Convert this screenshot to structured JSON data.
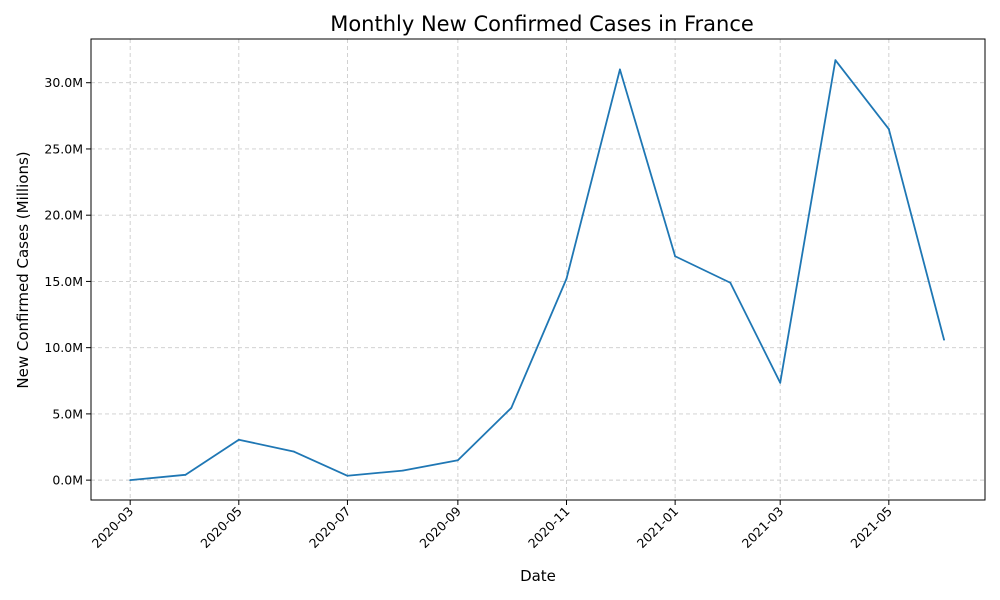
{
  "chart_data": {
    "type": "line",
    "title": "Monthly New Confirmed Cases in France",
    "xlabel": "Date",
    "ylabel": "New Confirmed Cases (Millions)",
    "x": [
      "2020-03-01",
      "2020-04-01",
      "2020-05-01",
      "2020-06-01",
      "2020-07-01",
      "2020-08-01",
      "2020-09-01",
      "2020-10-01",
      "2020-11-01",
      "2020-12-01",
      "2021-01-01",
      "2021-02-01",
      "2021-03-01",
      "2021-04-01",
      "2021-05-01",
      "2021-06-01"
    ],
    "series": [
      {
        "values": [
          0.0,
          0.4,
          3.05,
          2.15,
          0.33,
          0.72,
          1.5,
          5.45,
          15.2,
          31.0,
          16.9,
          14.9,
          7.35,
          31.7,
          26.5,
          10.6
        ],
        "color": "#1f77b4"
      }
    ],
    "ylim": [
      -1.5,
      33.3
    ],
    "xlim": [
      "2020-02-08",
      "2021-06-24"
    ],
    "yticks": [
      0,
      5,
      10,
      15,
      20,
      25,
      30
    ],
    "ytick_labels": [
      "0.0M",
      "5.0M",
      "10.0M",
      "15.0M",
      "20.0M",
      "25.0M",
      "30.0M"
    ],
    "xticks": [
      "2020-03-01",
      "2020-05-01",
      "2020-07-01",
      "2020-09-01",
      "2020-11-01",
      "2021-01-01",
      "2021-03-01",
      "2021-05-01"
    ],
    "xtick_labels": [
      "2020-03",
      "2020-05",
      "2020-07",
      "2020-09",
      "2020-11",
      "2021-01",
      "2021-03",
      "2021-05"
    ],
    "grid": true,
    "legend": "none"
  }
}
